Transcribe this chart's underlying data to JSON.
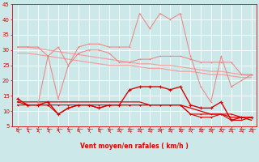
{
  "x": [
    0,
    1,
    2,
    3,
    4,
    5,
    6,
    7,
    8,
    9,
    10,
    11,
    12,
    13,
    14,
    15,
    16,
    17,
    18,
    19,
    20,
    21,
    22,
    23
  ],
  "series_rafales_light": [
    14,
    12,
    12,
    28,
    14,
    25,
    31,
    32,
    32,
    31,
    31,
    31,
    42,
    37,
    42,
    40,
    42,
    28,
    18,
    13,
    28,
    18,
    20,
    22
  ],
  "series_moy_light": [
    31,
    31,
    31,
    28,
    31,
    25,
    29,
    30,
    30,
    29,
    26,
    26,
    27,
    27,
    28,
    28,
    28,
    27,
    26,
    26,
    26,
    26,
    22,
    22
  ],
  "series_trend1": [
    31,
    31,
    30.5,
    30,
    29.5,
    29,
    28.5,
    28,
    27.5,
    27,
    26.5,
    26,
    25.5,
    25.5,
    25,
    25,
    24.5,
    24,
    23.5,
    23,
    23,
    22.5,
    22,
    21.5
  ],
  "series_trend2": [
    29,
    29,
    28.5,
    28,
    27.5,
    27,
    26.5,
    26,
    25.5,
    25,
    25,
    25,
    24.5,
    24,
    24,
    23.5,
    23,
    23,
    22.5,
    22,
    22,
    21.5,
    21,
    21
  ],
  "series_vent_moyen": [
    14,
    12,
    12,
    13,
    9,
    11,
    12,
    12,
    11,
    12,
    12,
    17,
    18,
    18,
    18,
    17,
    18,
    12,
    11,
    11,
    13,
    7,
    8,
    8
  ],
  "series_vent_dark1": [
    12,
    12,
    12,
    12,
    12,
    12,
    12,
    12,
    12,
    12,
    12,
    12,
    12,
    12,
    12,
    12,
    12,
    9,
    9,
    9,
    9,
    9,
    8,
    8
  ],
  "series_vent_dark2": [
    13,
    12,
    12,
    12,
    9,
    11,
    12,
    12,
    11,
    12,
    12,
    12,
    12,
    12,
    12,
    12,
    12,
    9,
    8,
    8,
    9,
    7,
    7,
    8
  ],
  "series_vent_trend": [
    13,
    13,
    13,
    13,
    13,
    13,
    13,
    13,
    13,
    13,
    13,
    13,
    13,
    12,
    12,
    12,
    12,
    11,
    10,
    9,
    9,
    8,
    8,
    7
  ],
  "bg_color": "#cce8e8",
  "grid_color": "#b0d8d8",
  "line_color_light": "#f08080",
  "line_color_medium": "#e06060",
  "line_color_dark": "#dd0000",
  "line_color_trend": "#f4a0a0",
  "xlabel": "Vent moyen/en rafales ( km/h )",
  "ylim": [
    5,
    45
  ],
  "yticks": [
    5,
    10,
    15,
    20,
    25,
    30,
    35,
    40,
    45
  ]
}
